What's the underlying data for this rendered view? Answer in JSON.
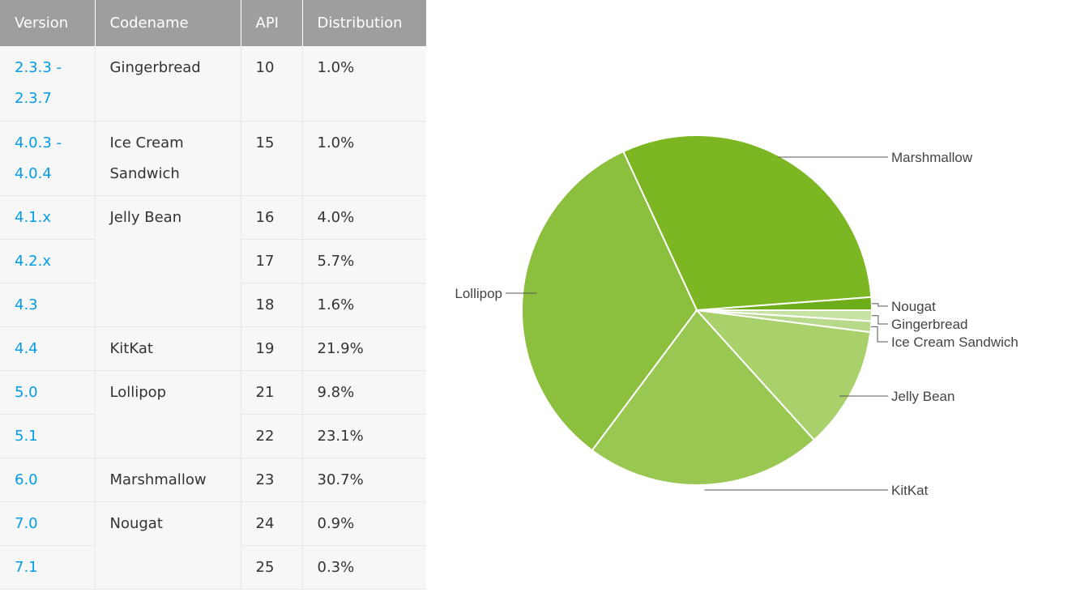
{
  "table": {
    "headers": {
      "version": "Version",
      "codename": "Codename",
      "api": "API",
      "distribution": "Distribution"
    },
    "rows": [
      {
        "version": "2.3.3 -\n2.3.7",
        "codename": "Gingerbread",
        "api": "10",
        "distribution": "1.0%"
      },
      {
        "version": "4.0.3 -\n4.0.4",
        "codename": "Ice Cream\nSandwich",
        "api": "15",
        "distribution": "1.0%"
      },
      {
        "version": "4.1.x",
        "codename": "Jelly Bean",
        "api": "16",
        "distribution": "4.0%"
      },
      {
        "version": "4.2.x",
        "codename": "",
        "api": "17",
        "distribution": "5.7%"
      },
      {
        "version": "4.3",
        "codename": "",
        "api": "18",
        "distribution": "1.6%"
      },
      {
        "version": "4.4",
        "codename": "KitKat",
        "api": "19",
        "distribution": "21.9%"
      },
      {
        "version": "5.0",
        "codename": "Lollipop",
        "api": "21",
        "distribution": "9.8%"
      },
      {
        "version": "5.1",
        "codename": "",
        "api": "22",
        "distribution": "23.1%"
      },
      {
        "version": "6.0",
        "codename": "Marshmallow",
        "api": "23",
        "distribution": "30.7%"
      },
      {
        "version": "7.0",
        "codename": "Nougat",
        "api": "24",
        "distribution": "0.9%"
      },
      {
        "version": "7.1",
        "codename": "",
        "api": "25",
        "distribution": "0.3%"
      }
    ]
  },
  "chart_data": {
    "type": "pie",
    "start": "3 o'clock, counter-clockwise",
    "slices": [
      {
        "label": "Nougat",
        "value": 1.2,
        "color": "#6fae1b"
      },
      {
        "label": "Marshmallow",
        "value": 30.7,
        "color": "#7cb723"
      },
      {
        "label": "Lollipop",
        "value": 32.9,
        "color": "#8bbf3d"
      },
      {
        "label": "KitKat",
        "value": 21.9,
        "color": "#98c752"
      },
      {
        "label": "Jelly Bean",
        "value": 11.3,
        "color": "#a8d06b"
      },
      {
        "label": "Ice Cream Sandwich",
        "value": 1.0,
        "color": "#b8d98a"
      },
      {
        "label": "Gingerbread",
        "value": 1.0,
        "color": "#c7e2a3"
      }
    ]
  },
  "colors": {
    "header_bg": "#9e9e9e",
    "version_link": "#039be5",
    "cell_bg": "#f7f7f7"
  }
}
